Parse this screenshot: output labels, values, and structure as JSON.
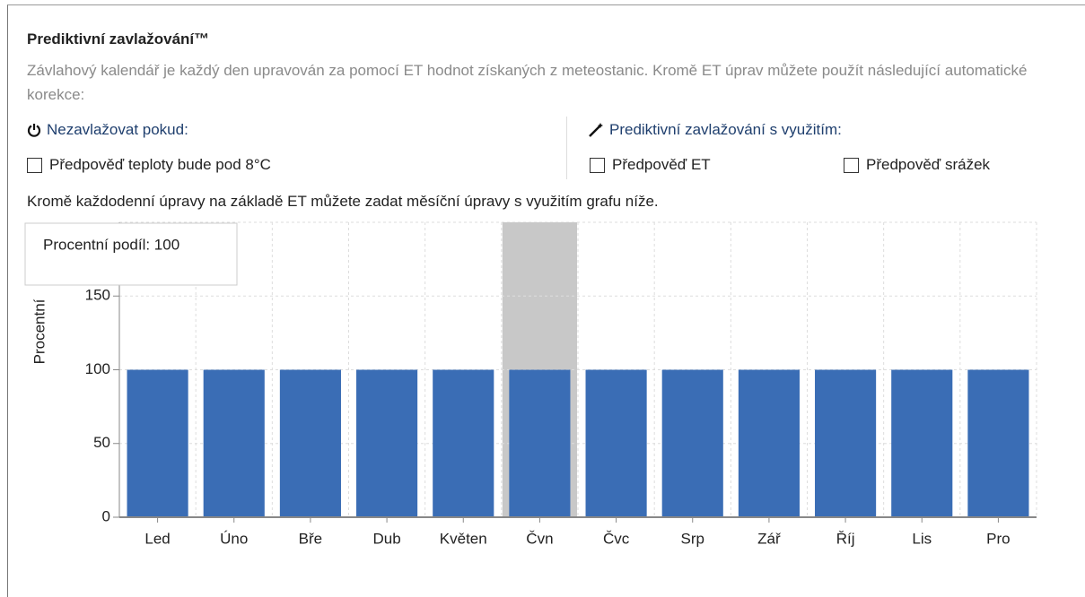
{
  "header": {
    "title": "Prediktivní zavlažování™",
    "description": "Závlahový kalendář je každý den upravován za pomocí ET hodnot získaných z meteostanic. Kromě ET úprav můžete použít následující automatické korekce:"
  },
  "left_section": {
    "heading": "Nezavlažovat pokud:",
    "checkboxes": [
      "Předpověď teploty bude pod 8°C"
    ]
  },
  "right_section": {
    "heading": "Prediktivní zavlažování s využitím:",
    "checkboxes": [
      "Předpověď ET",
      "Předpověď srážek"
    ]
  },
  "note": "Kromě každodenní úpravy na základě ET můžete zadat měsíční úpravy s využitím grafu níže.",
  "chart_data": {
    "type": "bar",
    "y_label": "Procentní",
    "tooltip": "Procentní podíl: 100",
    "categories": [
      "Led",
      "Úno",
      "Bře",
      "Dub",
      "Květen",
      "Čvn",
      "Čvc",
      "Srp",
      "Zář",
      "Říj",
      "Lis",
      "Pro"
    ],
    "values": [
      100,
      100,
      100,
      100,
      100,
      100,
      100,
      100,
      100,
      100,
      100,
      100
    ],
    "color": "#3a6db5",
    "highlight": 5,
    "ylim": [
      0,
      200
    ],
    "yticks": [
      0,
      50,
      100,
      150
    ],
    "grid": true
  }
}
